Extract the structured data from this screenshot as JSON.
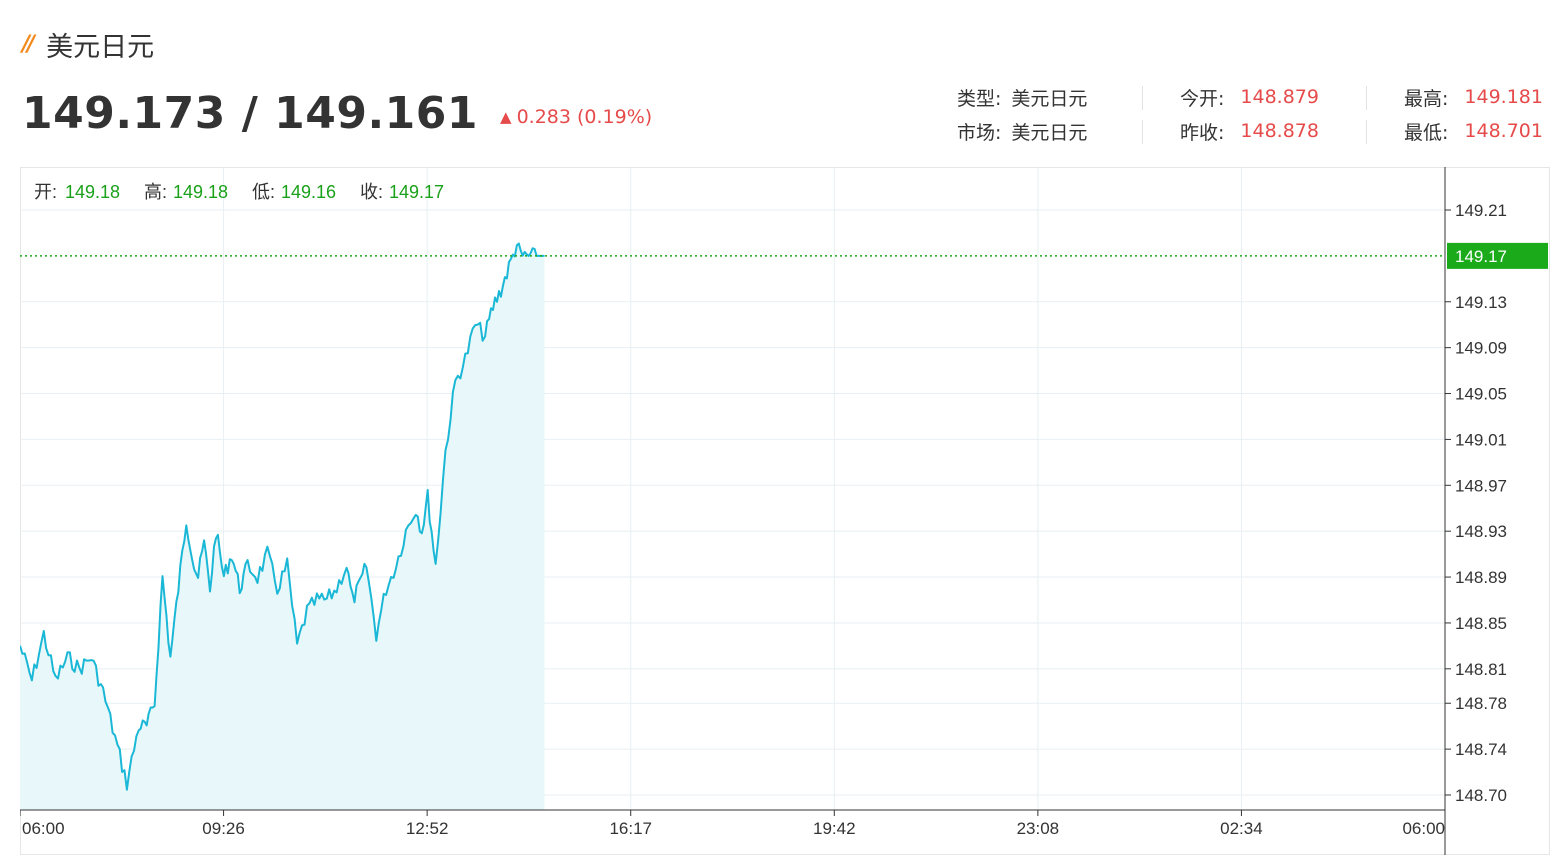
{
  "header": {
    "title": "美元日元",
    "price": "149.173 / 149.161",
    "change": "0.283 (0.19%)",
    "change_icon": "up-arrow-icon"
  },
  "info": {
    "type_label": "类型:",
    "type_value": "美元日元",
    "market_label": "市场:",
    "market_value": "美元日元",
    "open_label": "今开:",
    "open_value": "148.879",
    "prev_close_label": "昨收:",
    "prev_close_value": "148.878",
    "high_label": "最高:",
    "high_value": "149.181",
    "low_label": "最低:",
    "low_value": "148.701"
  },
  "ohlc": {
    "open_label": "开:",
    "open_value": "149.18",
    "high_label": "高:",
    "high_value": "149.18",
    "low_label": "低:",
    "low_value": "149.16",
    "close_label": "收:",
    "close_value": "149.17"
  },
  "colors": {
    "line": "#1ab8d6",
    "area": "#e8f7fa",
    "last_price": "#1aaa1a",
    "up": "#e64b4b"
  },
  "chart_data": {
    "type": "line",
    "xlim": [
      "06:00",
      "06:00"
    ],
    "x_ticks": [
      "06:00",
      "09:26",
      "12:52",
      "16:17",
      "19:42",
      "23:08",
      "02:34",
      "06:00"
    ],
    "y_ticks": [
      "149.21",
      "149.13",
      "149.09",
      "149.05",
      "149.01",
      "148.97",
      "148.93",
      "148.89",
      "148.85",
      "148.81",
      "148.78",
      "148.74",
      "148.70"
    ],
    "ylim": [
      148.69,
      149.22
    ],
    "last_price": "149.17",
    "grid": true,
    "series": [
      {
        "x": [
          "06:00",
          "06:12",
          "06:24",
          "06:36",
          "06:48",
          "07:00",
          "07:12",
          "07:24",
          "07:36",
          "07:48",
          "08:00",
          "08:08",
          "08:16",
          "08:24",
          "08:32",
          "08:40",
          "08:48",
          "08:56",
          "09:00",
          "09:06",
          "09:12",
          "09:18",
          "09:26",
          "09:34",
          "09:42",
          "09:50",
          "10:00",
          "10:10",
          "10:20",
          "10:30",
          "10:40",
          "10:50",
          "11:00",
          "11:10",
          "11:20",
          "11:30",
          "11:36",
          "11:42",
          "11:50",
          "12:00",
          "12:10",
          "12:20",
          "12:30",
          "12:40",
          "12:46",
          "12:52",
          "13:00",
          "13:10",
          "13:20",
          "13:30",
          "13:40",
          "13:50",
          "13:56",
          "14:00",
          "14:06",
          "14:10",
          "14:14",
          "14:18",
          "14:22",
          "14:26",
          "14:30",
          "14:34",
          "14:38",
          "14:42",
          "14:46",
          "14:50"
        ],
        "values": [
          148.83,
          148.8,
          148.84,
          148.8,
          148.82,
          148.81,
          148.82,
          148.79,
          148.75,
          148.71,
          148.76,
          148.76,
          148.78,
          148.89,
          148.82,
          148.88,
          148.94,
          148.9,
          148.89,
          148.92,
          148.88,
          148.93,
          148.89,
          148.91,
          148.88,
          148.9,
          148.89,
          148.91,
          148.88,
          148.9,
          148.83,
          148.86,
          148.87,
          148.87,
          148.88,
          148.9,
          148.87,
          148.88,
          148.9,
          148.84,
          148.88,
          148.9,
          148.93,
          148.95,
          148.93,
          148.96,
          148.9,
          149.0,
          149.06,
          149.08,
          149.11,
          149.1,
          149.12,
          149.13,
          149.14,
          149.15,
          149.16,
          149.17,
          149.18,
          149.17,
          149.17,
          149.17,
          149.17,
          149.17,
          149.17,
          149.17
        ]
      }
    ]
  }
}
